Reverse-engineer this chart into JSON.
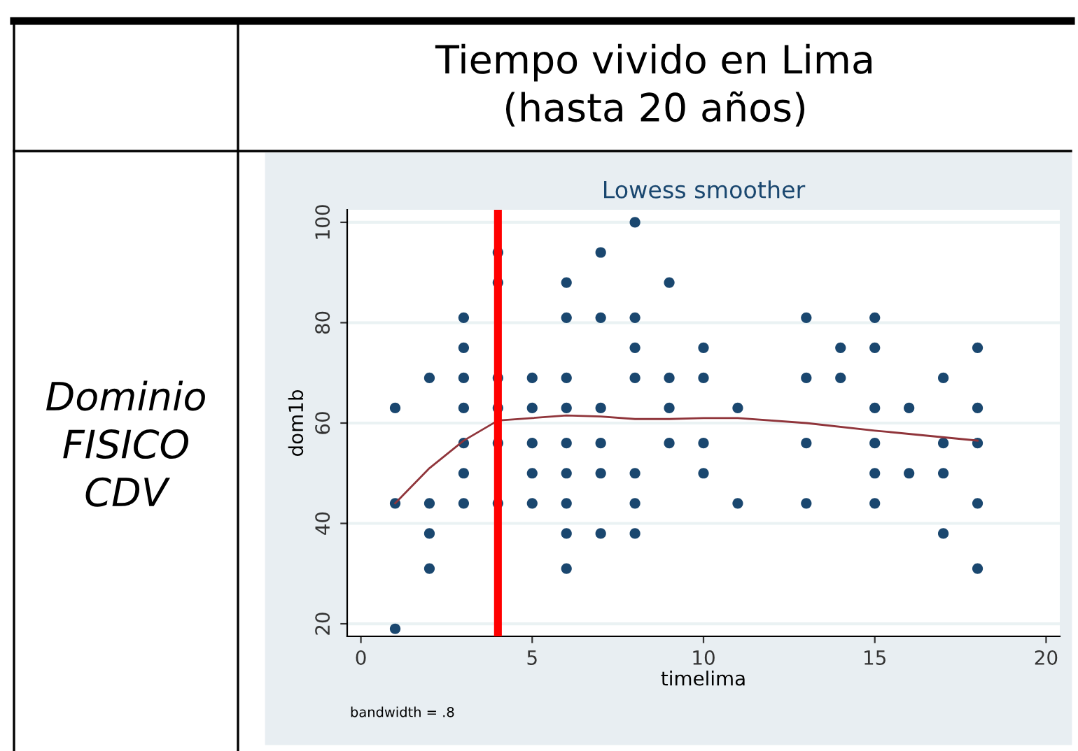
{
  "chart_data": {
    "type": "scatter",
    "title": "Lowess smoother",
    "xlabel": "timelima",
    "ylabel": "dom1b",
    "annotations": [
      "Tiempo vivido en Lima\n(hasta 20 años)",
      "Dominio\nFISICO\nCDV",
      "bandwidth = .8"
    ],
    "series": [
      {
        "color": "#1a476f",
        "marker": "circle",
        "x": [
          1,
          1,
          1,
          2,
          2,
          2,
          2,
          3,
          3,
          3,
          3,
          3,
          3,
          3,
          4,
          4,
          4,
          4,
          4,
          4,
          5,
          5,
          5,
          5,
          5,
          6,
          6,
          6,
          6,
          6,
          6,
          6,
          6,
          6,
          7,
          7,
          7,
          7,
          7,
          7,
          8,
          8,
          8,
          8,
          8,
          8,
          8,
          9,
          9,
          9,
          9,
          10,
          10,
          10,
          10,
          11,
          11,
          13,
          13,
          13,
          13,
          14,
          14,
          15,
          15,
          15,
          15,
          15,
          15,
          16,
          16,
          17,
          17,
          17,
          17,
          18,
          18,
          18,
          18,
          18
        ],
        "values": [
          63,
          44,
          19,
          69,
          44,
          38,
          31,
          81,
          75,
          69,
          63,
          56,
          50,
          44,
          94,
          88,
          69,
          63,
          56,
          44,
          69,
          63,
          56,
          50,
          44,
          88,
          81,
          69,
          63,
          56,
          50,
          44,
          38,
          31,
          94,
          81,
          63,
          56,
          50,
          38,
          100,
          81,
          75,
          69,
          50,
          44,
          38,
          88,
          69,
          63,
          56,
          75,
          69,
          56,
          50,
          63,
          44,
          81,
          69,
          56,
          44,
          75,
          69,
          81,
          75,
          63,
          56,
          50,
          44,
          63,
          50,
          69,
          56,
          50,
          38,
          75,
          63,
          56,
          44,
          31
        ]
      },
      {
        "type": "line",
        "color": "#90353b",
        "line_style": "solid",
        "x": [
          1,
          2,
          3,
          4,
          5,
          6,
          7,
          8,
          9,
          10,
          11,
          13,
          15,
          18
        ],
        "values": [
          44,
          51,
          56.5,
          60.5,
          61,
          61.5,
          61.3,
          60.8,
          60.8,
          61,
          61,
          60,
          58.5,
          56.5
        ]
      }
    ],
    "xlim": [
      -0.4,
      20.4
    ],
    "xticks": [
      0,
      5,
      10,
      15,
      20
    ],
    "ylim": [
      17.5,
      102.5
    ],
    "yticks": [
      20,
      40,
      60,
      80,
      100
    ],
    "grid": "y",
    "ref_lines": [
      {
        "axis": "x",
        "value": 4,
        "color": "#ff0000"
      }
    ]
  }
}
